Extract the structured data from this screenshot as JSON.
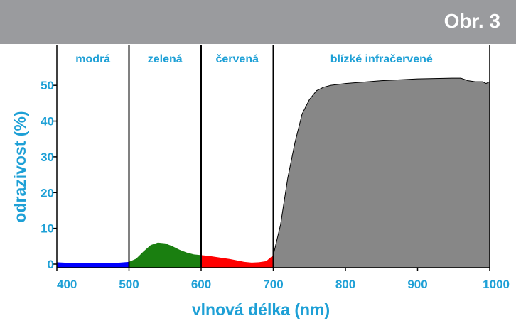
{
  "figure_label": "Obr. 3",
  "colors": {
    "header_bg": "#9a9b9e",
    "label_text": "#1ea0d6",
    "blue_band": "#0000ff",
    "green_band": "#1a7f10",
    "red_band": "#ff0000",
    "nir_band": "#878787"
  },
  "chart_data": {
    "type": "area",
    "title": "",
    "xlabel": "vlnová délka (nm)",
    "ylabel": "odrazivost (%)",
    "xlim": [
      400,
      1000
    ],
    "ylim": [
      0,
      55
    ],
    "x_ticks": [
      "400",
      "500",
      "600",
      "700",
      "800",
      "900",
      "1000"
    ],
    "y_ticks": [
      "0",
      "10",
      "20",
      "30",
      "40",
      "50"
    ],
    "grid": false,
    "band_dividers": [
      500,
      600,
      700
    ],
    "bands": [
      {
        "label": "modrá",
        "from": 400,
        "to": 500,
        "color": "#0000ff"
      },
      {
        "label": "zelená",
        "from": 500,
        "to": 600,
        "color": "#1a7f10"
      },
      {
        "label": "červená",
        "from": 600,
        "to": 700,
        "color": "#ff0000"
      },
      {
        "label": "blízké infračervené",
        "from": 700,
        "to": 1000,
        "color": "#878787"
      }
    ],
    "series": [
      {
        "x": [
          400,
          420,
          440,
          460,
          480,
          500,
          510,
          520,
          530,
          540,
          550,
          560,
          570,
          580,
          590,
          600,
          610,
          620,
          630,
          640,
          650,
          660,
          670,
          680,
          690,
          700,
          710,
          720,
          730,
          740,
          750,
          760,
          770,
          780,
          800,
          850,
          900,
          950,
          960,
          970,
          980,
          990,
          995,
          1000
        ],
        "y": [
          1.5,
          1.3,
          1.2,
          1.2,
          1.3,
          1.6,
          2.5,
          4.5,
          6.3,
          7.0,
          6.8,
          6.0,
          5.0,
          4.2,
          3.7,
          3.5,
          3.3,
          3.0,
          2.7,
          2.4,
          2.0,
          1.6,
          1.4,
          1.5,
          1.8,
          3.5,
          12.0,
          25.0,
          35.0,
          43.0,
          47.0,
          49.5,
          50.5,
          51.0,
          51.5,
          52.3,
          52.8,
          53.0,
          53.0,
          52.3,
          52.0,
          52.0,
          51.5,
          52.0
        ]
      }
    ]
  }
}
